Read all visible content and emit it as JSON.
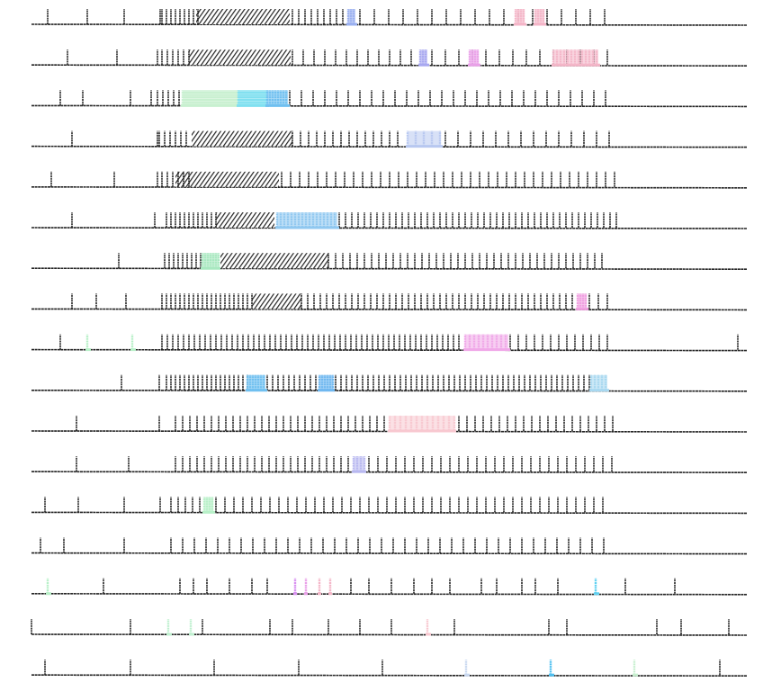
{
  "chart_data": {
    "type": "raster",
    "title": "",
    "xlabel": "",
    "ylabel": "",
    "grid": false,
    "legend": "none",
    "time_range": [
      0,
      795
    ],
    "spike_color": "#222222",
    "rows": [
      {
        "spikes": [
          18,
          62,
          103,
          143
        ],
        "regular": [
          [
            145,
            185,
            5
          ],
          [
            290,
            350,
            7
          ],
          [
            365,
            645,
            16
          ]
        ],
        "dense": [
          [
            183,
            287
          ]
        ],
        "highlights": [
          {
            "range": [
              352,
              360
            ],
            "step": 3,
            "color": "#9ab0f0"
          },
          {
            "range": [
              538,
              548
            ],
            "step": 3,
            "color": "#f4b6c8"
          },
          {
            "range": [
              560,
              570
            ],
            "step": 3,
            "color": "#f4b6c8"
          }
        ]
      },
      {
        "spikes": [
          40,
          95,
          140
        ],
        "regular": [
          [
            145,
            175,
            6
          ],
          [
            290,
            430,
            12
          ],
          [
            445,
            645,
            15
          ]
        ],
        "dense": [
          [
            175,
            288
          ]
        ],
        "highlights": [
          {
            "range": [
              432,
              440
            ],
            "step": 3,
            "color": "#a8a8f0"
          },
          {
            "range": [
              487,
              497
            ],
            "step": 3,
            "color": "#e9a0e8"
          },
          {
            "range": [
              580,
              630
            ],
            "step": 4,
            "color": "#f4b6c8"
          }
        ]
      },
      {
        "spikes": [
          32,
          57,
          110,
          133
        ],
        "regular": [
          [
            140,
            165,
            6
          ],
          [
            287,
            650,
            13
          ]
        ],
        "dense": [],
        "highlights": [
          {
            "range": [
              168,
              230
            ],
            "step": 2,
            "color": "#c8f0d0"
          },
          {
            "range": [
              230,
              262
            ],
            "step": 2,
            "color": "#80e0f0"
          },
          {
            "range": [
              262,
              285
            ],
            "step": 3,
            "color": "#70c0f0"
          }
        ]
      },
      {
        "spikes": [
          45,
          140
        ],
        "regular": [
          [
            142,
            175,
            6
          ],
          [
            290,
            415,
            9
          ],
          [
            460,
            645,
            14
          ]
        ],
        "dense": [
          [
            178,
            290
          ]
        ],
        "highlights": [
          {
            "range": [
              418,
              455
            ],
            "step": 9,
            "color": "#b8c8f0"
          }
        ]
      },
      {
        "spikes": [
          22,
          92,
          140
        ],
        "regular": [
          [
            145,
            175,
            6
          ],
          [
            278,
            650,
            10
          ]
        ],
        "dense": [
          [
            160,
            275
          ]
        ],
        "highlights": []
      },
      {
        "spikes": [
          45,
          137
        ],
        "regular": [
          [
            150,
            205,
            5
          ],
          [
            342,
            650,
            7
          ]
        ],
        "dense": [
          [
            205,
            270
          ]
        ],
        "highlights": [
          {
            "range": [
              273,
              340
            ],
            "step": 4,
            "color": "#90c8f0"
          }
        ]
      },
      {
        "spikes": [
          97
        ],
        "regular": [
          [
            148,
            190,
            5
          ],
          [
            330,
            640,
            8
          ]
        ],
        "dense": [
          [
            210,
            330
          ]
        ],
        "highlights": [
          {
            "range": [
              190,
              208
            ],
            "step": 3,
            "color": "#a8e8c0"
          }
        ]
      },
      {
        "spikes": [
          45,
          72,
          105
        ],
        "regular": [
          [
            145,
            245,
            5
          ],
          [
            300,
            605,
            7
          ],
          [
            620,
            645,
            10
          ]
        ],
        "dense": [
          [
            245,
            300
          ]
        ],
        "highlights": [
          {
            "range": [
              607,
              617
            ],
            "step": 3,
            "color": "#f0a0e0"
          }
        ]
      },
      {
        "spikes": [
          32,
          785
        ],
        "regular": [
          [
            145,
            480,
            6
          ],
          [
            532,
            645,
            9
          ]
        ],
        "dense": [],
        "highlights": [
          {
            "range": [
              62,
              64
            ],
            "step": 3,
            "color": "#b8f0c8"
          },
          {
            "range": [
              112,
              114
            ],
            "step": 3,
            "color": "#b8f0c8"
          },
          {
            "range": [
              482,
              530
            ],
            "step": 5,
            "color": "#f0a8e8"
          }
        ]
      },
      {
        "spikes": [
          100,
          142
        ],
        "regular": [
          [
            150,
            240,
            5
          ],
          [
            262,
            320,
            6
          ],
          [
            338,
            620,
            6
          ]
        ],
        "dense": [],
        "highlights": [
          {
            "range": [
              240,
              260
            ],
            "step": 3,
            "color": "#70c0f0"
          },
          {
            "range": [
              320,
              335
            ],
            "step": 3,
            "color": "#70b8f0"
          },
          {
            "range": [
              622,
              640
            ],
            "step": 4,
            "color": "#a8d8f0"
          }
        ]
      },
      {
        "spikes": [
          50,
          142
        ],
        "regular": [
          [
            160,
            395,
            8
          ],
          [
            475,
            650,
            9
          ]
        ],
        "dense": [],
        "highlights": [
          {
            "range": [
              398,
              470
            ],
            "step": 6,
            "color": "#f8c8d0"
          }
        ]
      },
      {
        "spikes": [
          50,
          108
        ],
        "regular": [
          [
            160,
            355,
            8
          ],
          [
            375,
            645,
            10
          ]
        ],
        "dense": [],
        "highlights": [
          {
            "range": [
              358,
              370
            ],
            "step": 4,
            "color": "#b8b8f0"
          }
        ]
      },
      {
        "spikes": [
          15,
          52,
          103,
          143
        ],
        "regular": [
          [
            155,
            188,
            8
          ],
          [
            205,
            640,
            10
          ]
        ],
        "dense": [],
        "highlights": [
          {
            "range": [
              192,
              202
            ],
            "step": 3,
            "color": "#b8f0c8"
          }
        ]
      },
      {
        "spikes": [
          10,
          36,
          103
        ],
        "regular": [
          [
            155,
            640,
            13
          ]
        ],
        "dense": [],
        "highlights": []
      },
      {
        "spikes": [
          80,
          165,
          180,
          195,
          220,
          245,
          262,
          355,
          375,
          400,
          425,
          445,
          465,
          500,
          517,
          545,
          560,
          585,
          660,
          715
        ],
        "regular": [],
        "dense": [],
        "highlights": [
          {
            "range": [
              18,
              20
            ],
            "step": 3,
            "color": "#b8f0c8"
          },
          {
            "range": [
              293,
              293
            ],
            "step": 3,
            "color": "#d890f0"
          },
          {
            "range": [
              305,
              305
            ],
            "step": 3,
            "color": "#e9a0e8"
          },
          {
            "range": [
              320,
              320
            ],
            "step": 3,
            "color": "#f4b6c8"
          },
          {
            "range": [
              332,
              332
            ],
            "step": 3,
            "color": "#f4b6c8"
          },
          {
            "range": [
              627,
              629
            ],
            "step": 3,
            "color": "#60d0f0"
          }
        ]
      },
      {
        "spikes": [
          0,
          110,
          190,
          265,
          290,
          330,
          365,
          400,
          470,
          575,
          595,
          695,
          722,
          775
        ],
        "regular": [],
        "dense": [],
        "highlights": [
          {
            "range": [
              152,
              154
            ],
            "step": 3,
            "color": "#c0f0d0"
          },
          {
            "range": [
              177,
              179
            ],
            "step": 3,
            "color": "#c0f0d0"
          },
          {
            "range": [
              440,
              442
            ],
            "step": 3,
            "color": "#f8c8d0"
          }
        ]
      },
      {
        "spikes": [
          15,
          110,
          203,
          297,
          390,
          765
        ],
        "regular": [],
        "dense": [],
        "highlights": [
          {
            "range": [
              483,
              485
            ],
            "step": 3,
            "color": "#c8d8f0"
          },
          {
            "range": [
              577,
              579
            ],
            "step": 3,
            "color": "#50c0f0"
          },
          {
            "range": [
              670,
              672
            ],
            "step": 3,
            "color": "#c8f0d0"
          }
        ]
      }
    ]
  }
}
